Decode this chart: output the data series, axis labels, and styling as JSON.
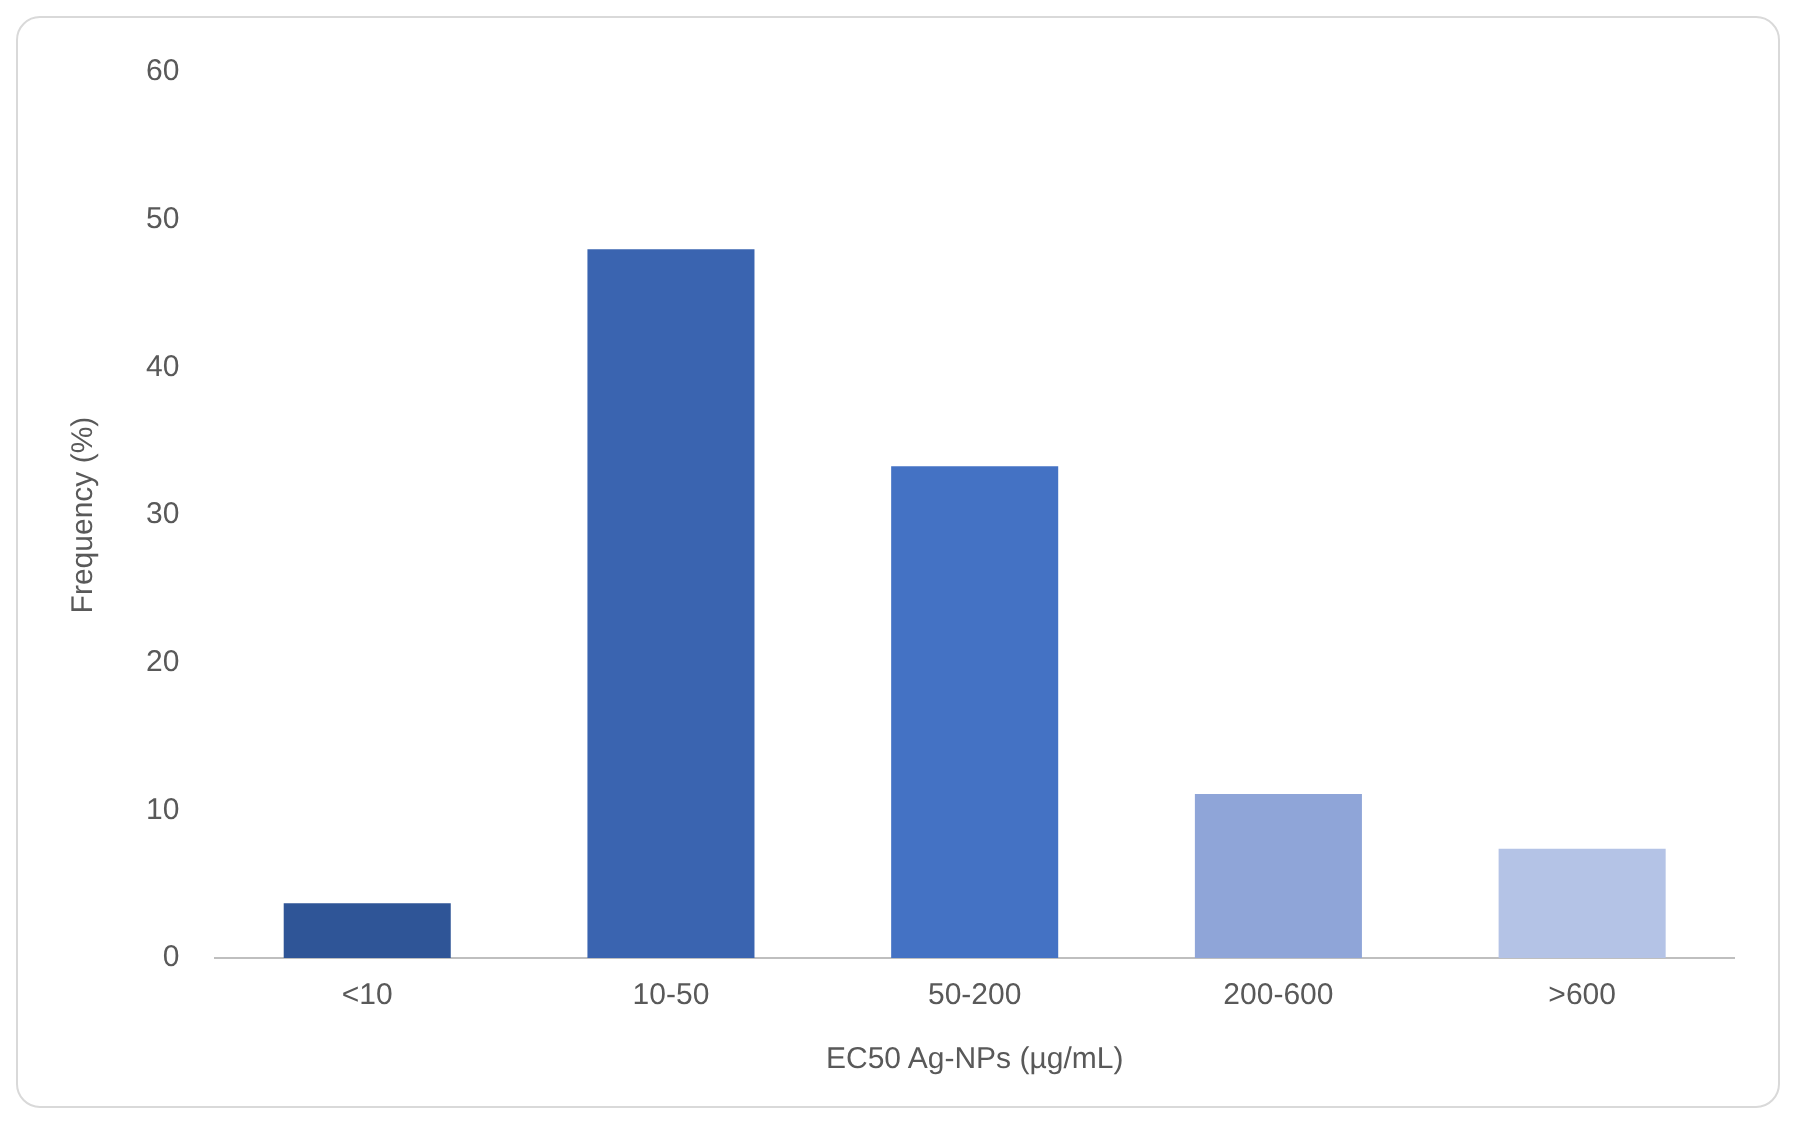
{
  "chart_data": {
    "type": "bar",
    "xlabel": "EC50 Ag-NPs (µg/mL)",
    "ylabel": "Frequency (%)",
    "categories": [
      "<10",
      "10-50",
      "50-200",
      "200-600",
      ">600"
    ],
    "values": [
      3.7,
      48,
      33.3,
      11.1,
      7.4
    ],
    "colors": [
      "#2f5597",
      "#3a64b0",
      "#4472c4",
      "#8fa5d8",
      "#b4c3e6"
    ],
    "ylim": [
      0,
      60
    ],
    "yticks": [
      0,
      10,
      20,
      30,
      40,
      50,
      60
    ],
    "grid": false,
    "legend": false
  }
}
